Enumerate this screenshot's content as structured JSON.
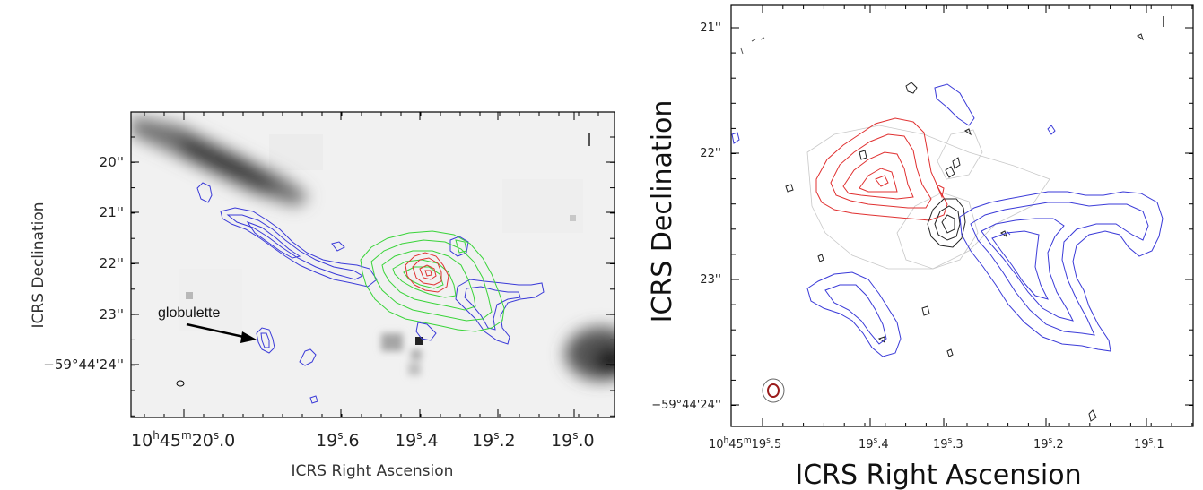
{
  "left_panel": {
    "ytick_labels": [
      "20''",
      "21''",
      "22''",
      "23''",
      "−59°44'24''"
    ],
    "xtick_labels": {
      "first_h": "10",
      "first_hsup": "h",
      "first_m": "45",
      "first_msup": "m",
      "first_s": "20",
      "first_ssup": "s",
      "first_frac": ".0",
      "rest": [
        {
          "s": "19",
          "frac": ".6"
        },
        {
          "s": "19",
          "frac": ".4"
        },
        {
          "s": "19",
          "frac": ".2"
        },
        {
          "s": "19",
          "frac": ".0"
        }
      ],
      "sup": "s"
    },
    "xlabel": "ICRS Right Ascension",
    "ylabel": "ICRS Declination",
    "annotation": "globulette",
    "contour_colors": {
      "blue": "#3a3ad8",
      "green": "#39d439",
      "red": "#e03030"
    }
  },
  "right_panel": {
    "ytick_labels": [
      "21''",
      "22''",
      "23''",
      "−59°44'24''"
    ],
    "xtick_labels": {
      "first_h": "10",
      "first_hsup": "h",
      "first_m": "45",
      "first_msup": "m",
      "first_s": "19",
      "first_ssup": "s",
      "first_frac": ".5",
      "rest": [
        {
          "s": "19",
          "frac": ".4"
        },
        {
          "s": "19",
          "frac": ".3"
        },
        {
          "s": "19",
          "frac": ".2"
        },
        {
          "s": "19",
          "frac": ".1"
        }
      ],
      "sup": "s"
    },
    "xlabel": "ICRS Right Ascension",
    "ylabel": "ICRS Declination",
    "contour_colors": {
      "blue": "#3a3ad8",
      "red": "#e03030",
      "black": "#222222",
      "gray": "#c8c8c8",
      "beam": "#9a1a1a"
    }
  }
}
